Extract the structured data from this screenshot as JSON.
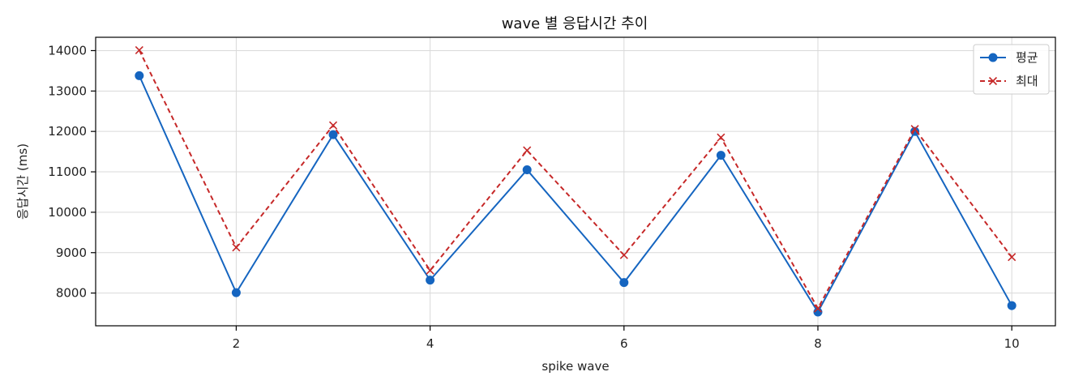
{
  "chart_data": {
    "type": "line",
    "title": "wave 별 응답시간 추이",
    "xlabel": "spike wave",
    "ylabel": "응답시간 (ms)",
    "x": [
      1,
      2,
      3,
      4,
      5,
      6,
      7,
      8,
      9,
      10
    ],
    "xlim": [
      0.55,
      10.45
    ],
    "ylim": [
      7190,
      14330
    ],
    "xticks": [
      2,
      4,
      6,
      8,
      10
    ],
    "yticks": [
      8000,
      9000,
      10000,
      11000,
      12000,
      13000,
      14000
    ],
    "grid": true,
    "legend_position": "top-right",
    "series": [
      {
        "name": "평균",
        "color": "#1565c0",
        "line_style": "solid",
        "marker": "circle",
        "values": [
          13380,
          8010,
          11920,
          8320,
          11050,
          8260,
          11410,
          7530,
          12000,
          7690
        ]
      },
      {
        "name": "최대",
        "color": "#c62828",
        "line_style": "dashed",
        "marker": "x",
        "values": [
          14010,
          9130,
          12150,
          8560,
          11530,
          8940,
          11850,
          7620,
          12060,
          8890
        ]
      }
    ]
  }
}
